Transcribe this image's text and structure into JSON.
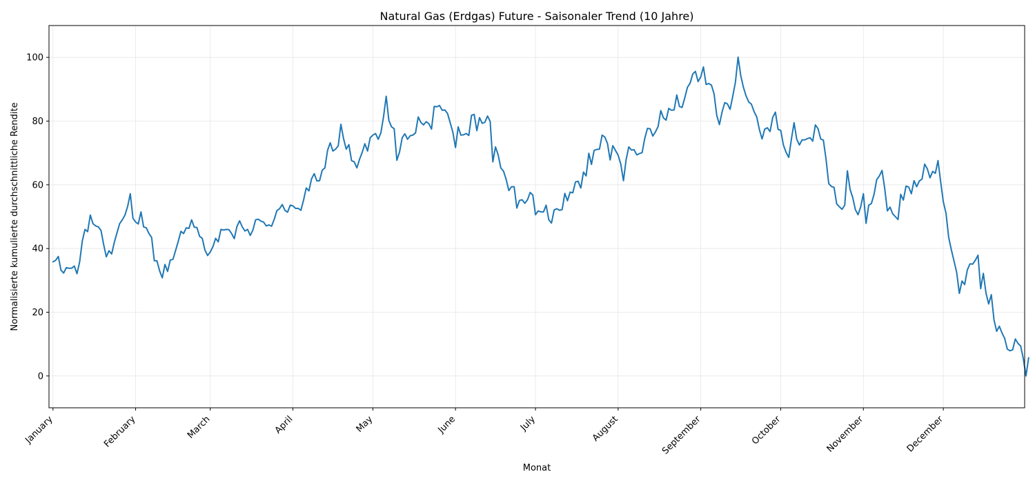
{
  "chart_data": {
    "type": "line",
    "title": "Natural Gas (Erdgas) Future - Saisonaler Trend (10 Jahre)",
    "xlabel": "Monat",
    "ylabel": "Normalisierte kumulierte durchschnittliche Rendite",
    "ylim": [
      -10,
      110
    ],
    "y_ticks": [
      0,
      20,
      40,
      60,
      80,
      100
    ],
    "x_ticks": [
      "January",
      "February",
      "March",
      "April",
      "May",
      "June",
      "July",
      "August",
      "September",
      "October",
      "November",
      "December"
    ],
    "grid": true,
    "line_color": "#1f77b4",
    "series": [
      {
        "x_start_day": 1,
        "values": [
          35.8,
          36.3,
          37.5,
          33.2,
          32.3,
          34.0,
          33.8,
          33.8,
          34.5,
          32.1,
          35.8,
          42.4,
          46.0,
          45.3,
          50.5,
          47.8,
          47.1,
          46.8,
          45.7,
          41.3,
          37.4,
          39.3,
          38.3,
          41.9,
          44.9,
          47.8,
          49.0,
          50.5,
          53.2,
          57.2,
          49.5,
          48.3,
          47.7,
          51.5,
          46.8,
          46.5,
          44.7,
          43.5,
          36.2,
          36.1,
          33.0,
          30.8,
          35.0,
          32.8,
          36.4,
          36.6,
          39.4,
          42.3,
          45.4,
          44.7,
          46.5,
          46.3,
          49.0,
          46.7,
          46.6,
          43.8,
          43.2,
          39.5,
          37.8,
          38.9,
          40.6,
          43.2,
          42.1,
          46.0,
          45.8,
          46.0,
          45.9,
          44.7,
          43.1,
          46.9,
          48.7,
          46.8,
          45.5,
          46.0,
          44.1,
          45.8,
          49.0,
          49.2,
          48.6,
          48.3,
          47.1,
          47.4,
          47.0,
          49.2,
          51.9,
          52.5,
          53.8,
          52.0,
          51.4,
          53.6,
          53.4,
          52.6,
          52.6,
          52.0,
          55.2,
          59.0,
          58.1,
          61.9,
          63.5,
          61.2,
          61.3,
          64.6,
          65.3,
          70.8,
          73.2,
          70.6,
          71.2,
          72.2,
          79.0,
          74.5,
          71.2,
          72.6,
          67.6,
          67.2,
          65.3,
          68.0,
          70.2,
          72.9,
          70.6,
          74.8,
          75.6,
          76.1,
          74.3,
          76.3,
          81.4,
          87.8,
          80.2,
          78.2,
          77.6,
          67.7,
          70.3,
          74.8,
          76.0,
          74.3,
          75.4,
          75.6,
          76.3,
          81.3,
          79.6,
          78.8,
          79.8,
          79.2,
          77.5,
          84.6,
          84.5,
          84.9,
          83.4,
          83.5,
          82.4,
          79.5,
          76.5,
          71.7,
          78.2,
          75.6,
          75.7,
          76.1,
          75.5,
          81.8,
          82.1,
          77.0,
          81.1,
          79.3,
          79.6,
          81.6,
          79.9,
          67.2,
          71.9,
          69.4,
          65.3,
          64.3,
          61.7,
          58.2,
          59.4,
          59.4,
          52.7,
          55.1,
          55.3,
          54.2,
          55.3,
          57.6,
          56.8,
          50.6,
          51.8,
          51.5,
          51.5,
          53.6,
          49.0,
          48.0,
          52.1,
          52.5,
          52.0,
          52.2,
          57.3,
          55.0,
          57.7,
          57.5,
          60.9,
          61.1,
          59.0,
          64.0,
          62.8,
          69.9,
          66.4,
          70.8,
          71.1,
          71.2,
          75.6,
          75.0,
          73.0,
          67.8,
          72.3,
          70.8,
          69.3,
          66.5,
          61.3,
          67.9,
          71.9,
          70.9,
          71.0,
          69.4,
          69.8,
          70.1,
          74.6,
          77.7,
          77.6,
          75.3,
          76.6,
          78.3,
          83.3,
          81.0,
          80.3,
          84.0,
          83.4,
          83.5,
          88.2,
          84.6,
          84.3,
          87.3,
          90.6,
          91.9,
          94.8,
          95.6,
          92.4,
          93.9,
          97.0,
          91.5,
          91.8,
          91.3,
          88.5,
          81.8,
          78.9,
          82.9,
          85.8,
          85.4,
          83.7,
          87.8,
          92.2,
          100.1,
          94.3,
          90.6,
          87.9,
          86.0,
          85.3,
          83.0,
          81.3,
          77.3,
          74.4,
          77.5,
          77.9,
          76.7,
          81.2,
          82.8,
          77.4,
          77.1,
          72.5,
          70.2,
          68.6,
          74.3,
          79.5,
          74.3,
          72.5,
          74.1,
          74.1,
          74.5,
          74.8,
          73.7,
          78.8,
          77.6,
          74.4,
          74.0,
          68.0,
          60.4,
          59.5,
          59.2,
          54.0,
          53.1,
          52.3,
          53.6,
          64.4,
          58.6,
          56.0,
          52.2,
          50.6,
          53.1,
          57.2,
          47.9,
          53.6,
          54.1,
          57.0,
          61.6,
          62.8,
          64.5,
          58.9,
          51.8,
          53.0,
          50.9,
          50.0,
          49.1,
          57.0,
          55.2,
          59.6,
          59.3,
          57.2,
          61.3,
          59.4,
          61.2,
          61.8,
          66.5,
          65.0,
          62.2,
          64.2,
          63.6,
          67.6,
          60.9,
          54.6,
          51.1,
          43.5,
          39.6,
          36.1,
          32.5,
          25.9,
          29.8,
          28.7,
          33.3,
          35.2,
          35.1,
          36.3,
          37.9,
          27.4,
          32.2,
          26.0,
          22.6,
          25.5,
          17.6,
          14.0,
          15.6,
          13.5,
          11.8,
          8.4,
          7.9,
          8.2,
          11.6,
          10.2,
          9.4,
          5.4,
          0.0,
          5.7
        ]
      }
    ]
  }
}
